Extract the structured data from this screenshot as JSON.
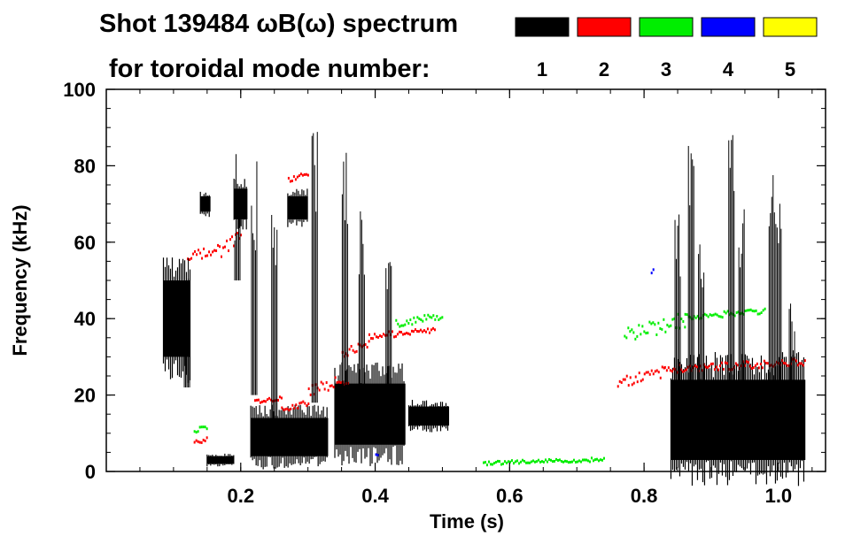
{
  "title_line1": "Shot 139484 ωB(ω) spectrum",
  "title_line2": "for toroidal mode number:",
  "legend": [
    {
      "label": "1",
      "color": "#000000"
    },
    {
      "label": "2",
      "color": "#ff0000"
    },
    {
      "label": "3",
      "color": "#00ee00"
    },
    {
      "label": "4",
      "color": "#0000ff"
    },
    {
      "label": "5",
      "color": "#ffff00"
    }
  ],
  "chart_data": {
    "type": "heatmap",
    "title": "Shot 139484 ωB(ω) spectrum",
    "xlabel": "Time (s)",
    "ylabel": "Frequency (kHz)",
    "xlim": [
      0.0,
      1.07
    ],
    "ylim": [
      0,
      100
    ],
    "xticks": [
      0.2,
      0.4,
      0.6,
      0.8,
      1.0
    ],
    "xtick_labels": [
      "0.2",
      "0.4",
      "0.6",
      "0.8",
      "1.0"
    ],
    "yticks": [
      0,
      20,
      40,
      60,
      80,
      100
    ],
    "ytick_labels": [
      "0",
      "20",
      "40",
      "60",
      "80",
      "100"
    ],
    "regions": [
      {
        "n": 1,
        "t0": 0.085,
        "t1": 0.125,
        "f0": 30,
        "f1": 50
      },
      {
        "n": 1,
        "t0": 0.14,
        "t1": 0.155,
        "f0": 68,
        "f1": 72
      },
      {
        "n": 1,
        "t0": 0.15,
        "t1": 0.19,
        "f0": 2,
        "f1": 4
      },
      {
        "n": 1,
        "t0": 0.19,
        "t1": 0.21,
        "f0": 66,
        "f1": 74
      },
      {
        "n": 1,
        "t0": 0.215,
        "t1": 0.33,
        "f0": 4,
        "f1": 14
      },
      {
        "n": 1,
        "t0": 0.27,
        "t1": 0.3,
        "f0": 66,
        "f1": 72
      },
      {
        "n": 1,
        "t0": 0.34,
        "t1": 0.445,
        "f0": 7,
        "f1": 23
      },
      {
        "n": 1,
        "t0": 0.45,
        "t1": 0.51,
        "f0": 12,
        "f1": 17
      },
      {
        "n": 1,
        "t0": 0.84,
        "t1": 1.04,
        "f0": 3,
        "f1": 24
      },
      {
        "n": 2,
        "t0": 0.12,
        "t1": 0.17,
        "f0": 55,
        "f1": 60
      },
      {
        "n": 2,
        "t0": 0.17,
        "t1": 0.2,
        "f0": 56,
        "f1": 64
      },
      {
        "n": 2,
        "t0": 0.13,
        "t1": 0.15,
        "f0": 7,
        "f1": 10
      },
      {
        "n": 2,
        "t0": 0.22,
        "t1": 0.26,
        "f0": 18,
        "f1": 20
      },
      {
        "n": 2,
        "t0": 0.26,
        "t1": 0.3,
        "f0": 16,
        "f1": 19
      },
      {
        "n": 2,
        "t0": 0.27,
        "t1": 0.3,
        "f0": 76,
        "f1": 79
      },
      {
        "n": 2,
        "t0": 0.3,
        "t1": 0.36,
        "f0": 20,
        "f1": 26
      },
      {
        "n": 2,
        "t0": 0.35,
        "t1": 0.39,
        "f0": 30,
        "f1": 35
      },
      {
        "n": 2,
        "t0": 0.39,
        "t1": 0.49,
        "f0": 35,
        "f1": 38
      },
      {
        "n": 2,
        "t0": 0.76,
        "t1": 0.83,
        "f0": 22,
        "f1": 28
      },
      {
        "n": 2,
        "t0": 0.83,
        "t1": 1.04,
        "f0": 26,
        "f1": 30
      },
      {
        "n": 3,
        "t0": 0.77,
        "t1": 0.86,
        "f0": 34,
        "f1": 42
      },
      {
        "n": 3,
        "t0": 0.86,
        "t1": 0.98,
        "f0": 40,
        "f1": 43
      },
      {
        "n": 3,
        "t0": 0.56,
        "t1": 0.74,
        "f0": 2,
        "f1": 4
      },
      {
        "n": 3,
        "t0": 0.43,
        "t1": 0.5,
        "f0": 38,
        "f1": 42
      },
      {
        "n": 3,
        "t0": 0.13,
        "t1": 0.15,
        "f0": 10,
        "f1": 13
      },
      {
        "n": 4,
        "t0": 0.81,
        "t1": 0.815,
        "f0": 52,
        "f1": 54
      },
      {
        "n": 4,
        "t0": 0.4,
        "t1": 0.405,
        "f0": 4,
        "f1": 6
      }
    ]
  }
}
